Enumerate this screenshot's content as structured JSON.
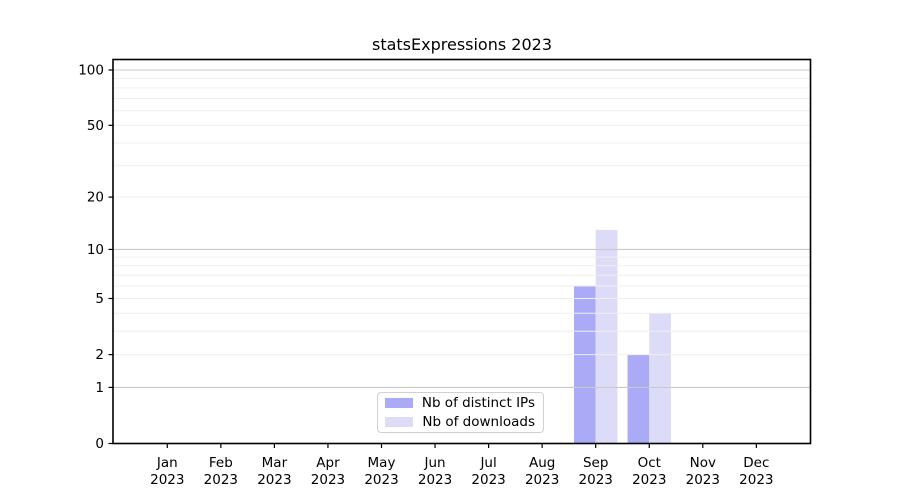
{
  "chart_data": {
    "type": "bar",
    "title": "statsExpressions 2023",
    "year_label": "2023",
    "categories": [
      "Jan",
      "Feb",
      "Mar",
      "Apr",
      "May",
      "Jun",
      "Jul",
      "Aug",
      "Sep",
      "Oct",
      "Nov",
      "Dec"
    ],
    "series": [
      {
        "name": "Nb of distinct IPs",
        "color": "#aaaaf7",
        "values": [
          0,
          0,
          0,
          0,
          0,
          0,
          0,
          0,
          6,
          2,
          0,
          0
        ]
      },
      {
        "name": "Nb of downloads",
        "color": "#dcdcf8",
        "values": [
          0,
          0,
          0,
          0,
          0,
          0,
          0,
          0,
          13,
          4,
          0,
          0
        ]
      }
    ],
    "y_scale": "log1p",
    "ylim": [
      0,
      100
    ],
    "y_ticks": [
      0,
      1,
      2,
      5,
      10,
      20,
      50,
      100
    ],
    "major_gridlines": [
      1,
      10,
      100
    ],
    "minor_gridlines": [
      2,
      3,
      4,
      5,
      6,
      7,
      8,
      9,
      20,
      30,
      40,
      50,
      60,
      70,
      80,
      90
    ],
    "grid": true,
    "legend_position": "lower center",
    "colors": {
      "axis": "#000000",
      "text": "#000000",
      "major_grid": "#c9c9c9",
      "minor_grid": "#efefef",
      "legend_border": "#d0d0d0",
      "background": "#ffffff"
    }
  }
}
